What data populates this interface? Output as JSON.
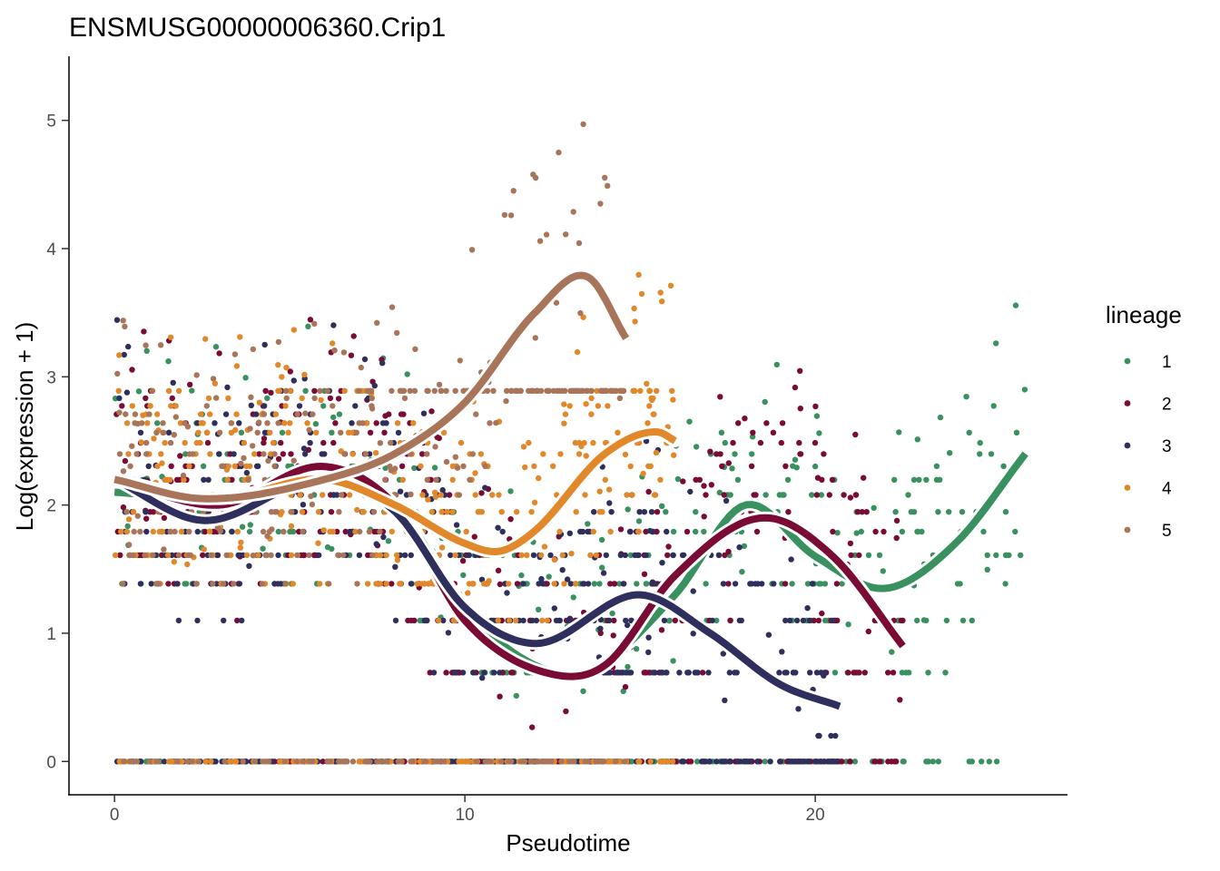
{
  "chart_data": {
    "type": "scatter",
    "title": "ENSMUSG00000006360.Crip1",
    "xlabel": "Pseudotime",
    "ylabel": "Log(expression + 1)",
    "xlim": [
      -1.3,
      27.2
    ],
    "ylim": [
      -0.26,
      5.5
    ],
    "x_ticks": [
      0,
      10,
      20
    ],
    "x_tick_labels": [
      "0",
      "10",
      "20"
    ],
    "y_ticks": [
      0,
      1,
      2,
      3,
      4,
      5
    ],
    "y_tick_labels": [
      "0",
      "1",
      "2",
      "3",
      "4",
      "5"
    ],
    "legend": {
      "title": "lineage",
      "position": "right"
    },
    "series": [
      {
        "name": "1",
        "color": "#3A9160",
        "x_range": [
          0,
          26
        ],
        "smooth": {
          "x": [
            0,
            3,
            6,
            8,
            10,
            12,
            13.5,
            16,
            18,
            20,
            22,
            24,
            26
          ],
          "y": [
            2.1,
            2.05,
            2.2,
            2.0,
            1.2,
            0.75,
            0.7,
            1.3,
            2.0,
            1.6,
            1.35,
            1.7,
            2.4
          ]
        }
      },
      {
        "name": "2",
        "color": "#7A0B35",
        "x_range": [
          0,
          22.5
        ],
        "smooth": {
          "x": [
            0,
            3,
            6,
            8,
            10,
            12.5,
            14,
            16,
            18.5,
            20.5,
            22.5
          ],
          "y": [
            2.2,
            2.0,
            2.3,
            2.0,
            1.1,
            0.68,
            0.75,
            1.45,
            1.9,
            1.6,
            0.9
          ]
        }
      },
      {
        "name": "3",
        "color": "#2E2F5C",
        "x_range": [
          0,
          20.7
        ],
        "smooth": {
          "x": [
            0,
            2.5,
            6,
            8,
            10,
            12,
            15,
            17,
            19,
            20.7
          ],
          "y": [
            2.2,
            1.88,
            2.2,
            1.95,
            1.2,
            0.92,
            1.3,
            1.0,
            0.6,
            0.43
          ]
        }
      },
      {
        "name": "4",
        "color": "#E0882A",
        "x_range": [
          0,
          16
        ],
        "smooth": {
          "x": [
            0,
            3,
            6,
            8,
            10,
            11,
            12,
            14,
            15.5,
            16
          ],
          "y": [
            2.2,
            2.05,
            2.2,
            2.0,
            1.7,
            1.64,
            1.8,
            2.4,
            2.57,
            2.5
          ]
        }
      },
      {
        "name": "5",
        "color": "#A8745A",
        "x_range": [
          0,
          14.6
        ],
        "smooth": {
          "x": [
            0,
            2.5,
            6,
            8,
            10,
            12,
            13.5,
            14.6
          ],
          "y": [
            2.2,
            2.05,
            2.2,
            2.4,
            2.8,
            3.5,
            3.78,
            3.3
          ]
        }
      }
    ]
  }
}
